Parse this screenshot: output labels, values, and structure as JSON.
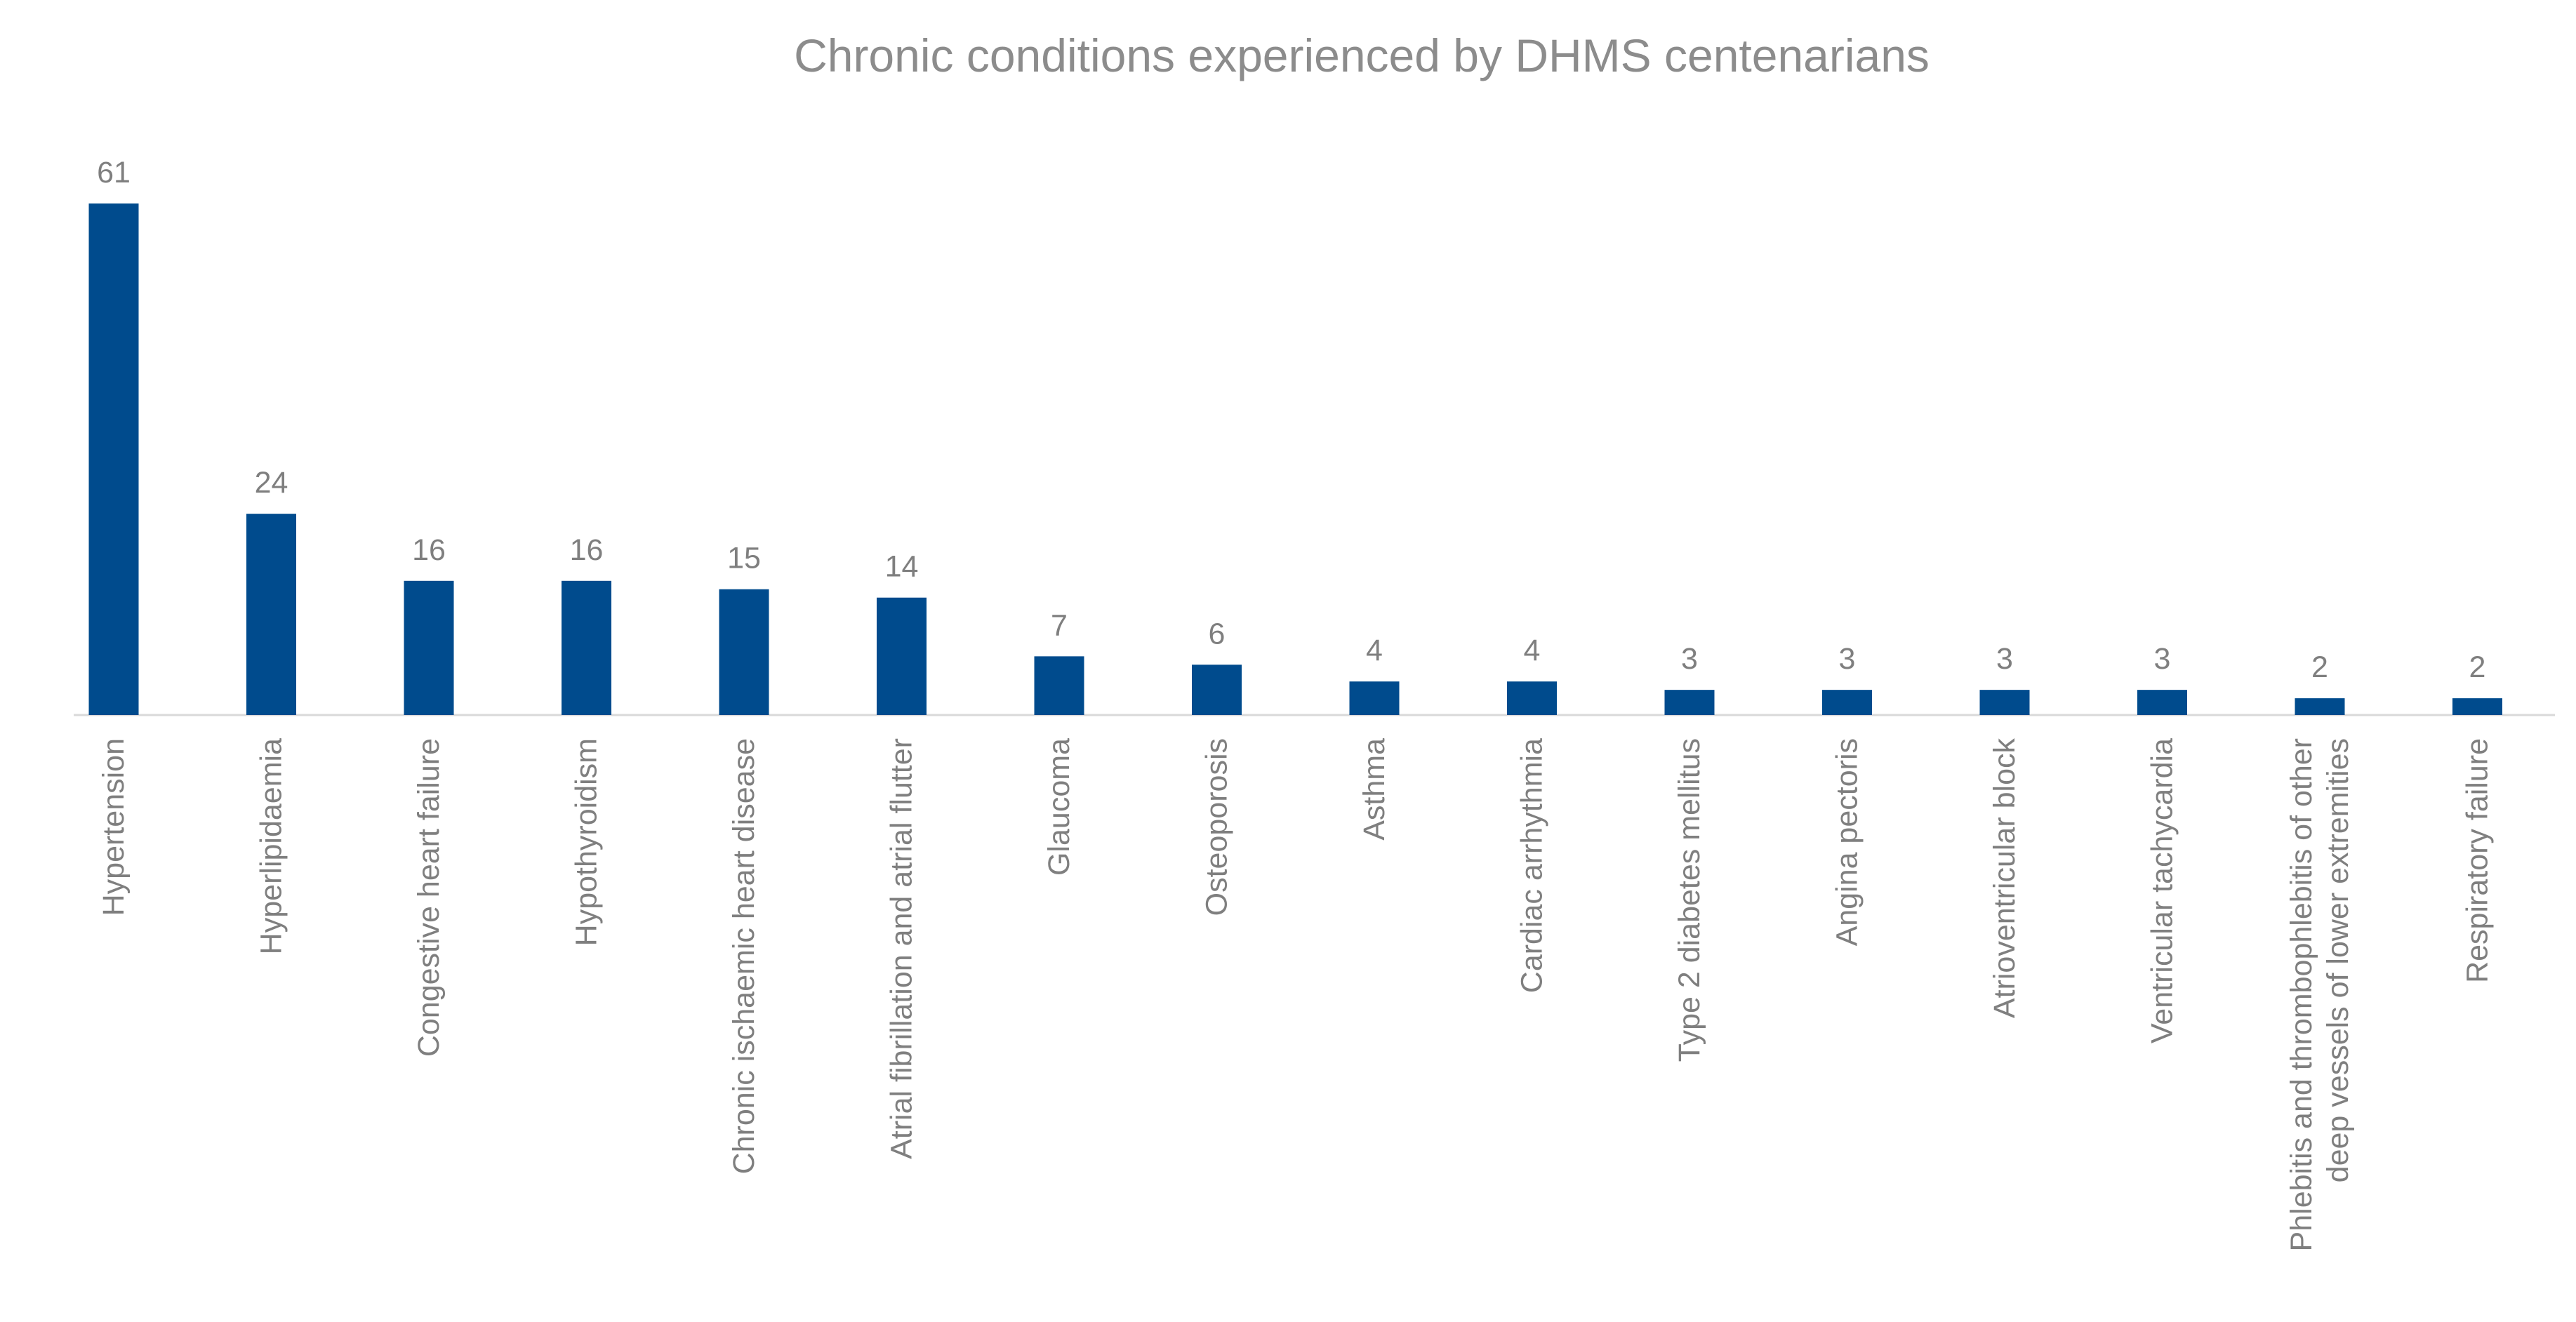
{
  "chart_data": {
    "type": "bar",
    "title": "Chronic conditions experienced by DHMS centenarians",
    "xlabel": "",
    "ylabel": "",
    "ylim": [
      0,
      61
    ],
    "grid": false,
    "legend": "none",
    "bar_color": "#004B8D",
    "categories": [
      [
        "Hypertension"
      ],
      [
        "Hyperlipidaemia"
      ],
      [
        "Congestive heart failure"
      ],
      [
        "Hypothyroidism"
      ],
      [
        "Chronic ischaemic heart disease"
      ],
      [
        "Atrial fibrillation and atrial flutter"
      ],
      [
        "Glaucoma"
      ],
      [
        "Osteoporosis"
      ],
      [
        "Asthma"
      ],
      [
        "Cardiac arrhythmia"
      ],
      [
        "Type 2 diabetes mellitus"
      ],
      [
        "Angina pectoris"
      ],
      [
        "Atrioventricular block"
      ],
      [
        "Ventricular tachycardia"
      ],
      [
        "Phlebitis and thrombophlebitis of other",
        "deep vessels of lower extremities"
      ],
      [
        "Respiratory failure"
      ]
    ],
    "values": [
      61,
      24,
      16,
      16,
      15,
      14,
      7,
      6,
      4,
      4,
      3,
      3,
      3,
      3,
      2,
      2
    ]
  }
}
